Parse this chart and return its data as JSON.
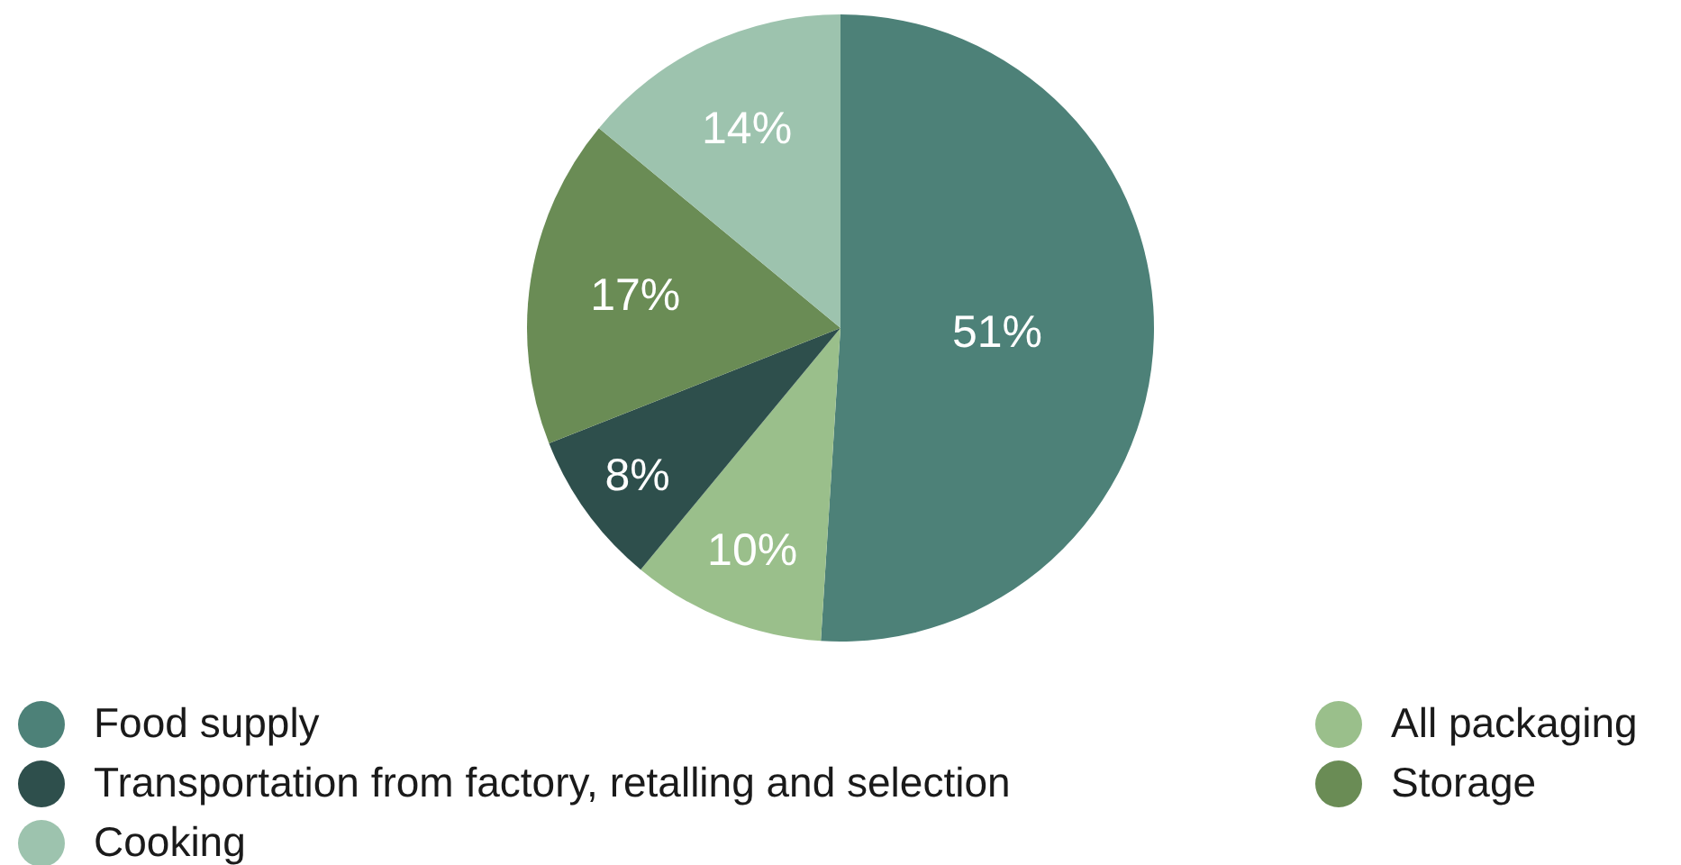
{
  "chart_data": {
    "type": "pie",
    "categories": [
      "Food supply",
      "All packaging",
      "Transportation from factory, retalling and selection",
      "Storage",
      "Cooking"
    ],
    "values": [
      51,
      10,
      8,
      17,
      14
    ],
    "value_labels": [
      "51%",
      "10%",
      "8%",
      "17%",
      "14%"
    ],
    "colors": [
      "#4d8178",
      "#9abf8b",
      "#2e4f4c",
      "#6a8c55",
      "#9dc3ae"
    ],
    "legend": "bottom"
  }
}
